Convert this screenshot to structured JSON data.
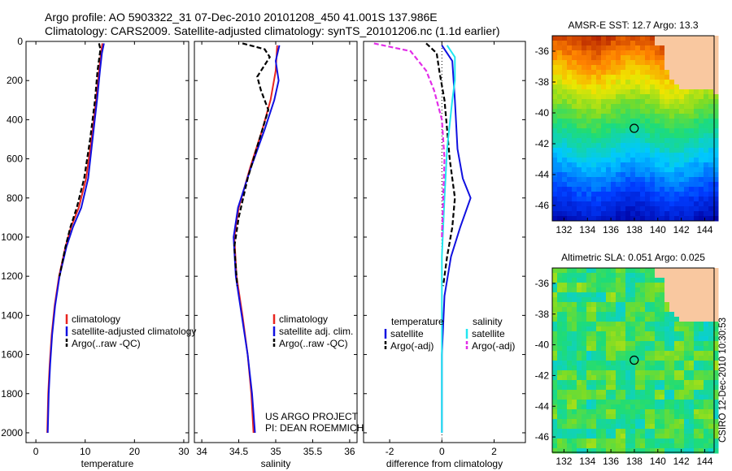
{
  "header": {
    "line1": "Argo profile: AO 5903322_31 07-Dec-2010 20101208_450 41.001S 137.986E",
    "line2": "Climatology: CARS2009. Satellite-adjusted climatology: synTS_20101206.nc (1.1d earlier)"
  },
  "credit": "CSIRO 12-Dec-2010 10:30:53",
  "colors": {
    "climatology": "#e8251f",
    "satellite": "#1010e0",
    "argo": "#000000",
    "salinity_sat": "#22e6f0",
    "salinity_argo": "#e22ee8",
    "land": "#f9c8a0"
  },
  "chart_data": [
    {
      "type": "line",
      "id": "temperature",
      "xlabel": "temperature",
      "ylabel": "",
      "xlim": [
        -2,
        31
      ],
      "ylim": [
        0,
        2050
      ],
      "y_reversed": true,
      "xticks": [
        "0",
        "10",
        "20",
        "30"
      ],
      "yticks": [
        "0",
        "200",
        "400",
        "600",
        "800",
        "1000",
        "1200",
        "1400",
        "1600",
        "1800",
        "2000"
      ],
      "legend": [
        "climatology",
        "satellite-adjusted climatology",
        "Argo(..raw -QC)"
      ],
      "series": [
        {
          "name": "climatology",
          "color": "#e8251f",
          "style": "solid",
          "points": [
            [
              13.5,
              10
            ],
            [
              13.2,
              60
            ],
            [
              12.8,
              150
            ],
            [
              12.2,
              300
            ],
            [
              11.3,
              500
            ],
            [
              10.2,
              700
            ],
            [
              8.7,
              850
            ],
            [
              7.1,
              950
            ],
            [
              6.0,
              1050
            ],
            [
              4.7,
              1200
            ],
            [
              3.8,
              1350
            ],
            [
              3.2,
              1500
            ],
            [
              2.8,
              1650
            ],
            [
              2.5,
              1800
            ],
            [
              2.3,
              2000
            ]
          ]
        },
        {
          "name": "satellite-adjusted climatology",
          "color": "#1010e0",
          "style": "solid",
          "points": [
            [
              13.8,
              10
            ],
            [
              13.4,
              60
            ],
            [
              13.0,
              150
            ],
            [
              12.4,
              300
            ],
            [
              11.5,
              500
            ],
            [
              10.6,
              700
            ],
            [
              9.2,
              850
            ],
            [
              7.5,
              950
            ],
            [
              6.2,
              1050
            ],
            [
              4.8,
              1200
            ],
            [
              3.9,
              1350
            ],
            [
              3.3,
              1500
            ],
            [
              2.9,
              1650
            ],
            [
              2.6,
              1800
            ],
            [
              2.4,
              2000
            ]
          ]
        },
        {
          "name": "Argo(..raw -QC)",
          "color": "#000000",
          "style": "dashed",
          "points": [
            [
              12.8,
              10
            ],
            [
              13.1,
              40
            ],
            [
              12.5,
              150
            ],
            [
              12.0,
              300
            ],
            [
              11.0,
              500
            ],
            [
              9.8,
              700
            ],
            [
              8.3,
              850
            ],
            [
              7.0,
              950
            ],
            [
              6.0,
              1050
            ],
            [
              4.8,
              1200
            ]
          ]
        }
      ]
    },
    {
      "type": "line",
      "id": "salinity",
      "xlabel": "salinity",
      "xlim": [
        33.9,
        36.1
      ],
      "ylim": [
        0,
        2050
      ],
      "y_reversed": true,
      "xticks": [
        "34",
        "34.5",
        "35",
        "35.5",
        "36"
      ],
      "legend": [
        "climatology",
        "satellite adj. clim.",
        "Argo(..raw -QC)"
      ],
      "annotations": [
        "US ARGO PROJECT",
        "PI: DEAN ROEMMICH"
      ],
      "series": [
        {
          "name": "climatology",
          "color": "#e8251f",
          "style": "solid",
          "points": [
            [
              35.02,
              20
            ],
            [
              35.0,
              150
            ],
            [
              34.93,
              300
            ],
            [
              34.82,
              450
            ],
            [
              34.65,
              650
            ],
            [
              34.5,
              850
            ],
            [
              34.44,
              1000
            ],
            [
              34.47,
              1200
            ],
            [
              34.55,
              1400
            ],
            [
              34.62,
              1600
            ],
            [
              34.67,
              1800
            ],
            [
              34.7,
              2000
            ]
          ]
        },
        {
          "name": "satellite adj. clim.",
          "color": "#1010e0",
          "style": "solid",
          "points": [
            [
              35.05,
              20
            ],
            [
              35.0,
              100
            ],
            [
              35.04,
              200
            ],
            [
              34.98,
              300
            ],
            [
              34.85,
              450
            ],
            [
              34.66,
              650
            ],
            [
              34.49,
              850
            ],
            [
              34.43,
              1000
            ],
            [
              34.46,
              1200
            ],
            [
              34.54,
              1400
            ],
            [
              34.62,
              1600
            ],
            [
              34.68,
              1800
            ],
            [
              34.72,
              2000
            ]
          ]
        },
        {
          "name": "Argo(..raw -QC)",
          "color": "#000000",
          "style": "dashed",
          "points": [
            [
              34.55,
              10
            ],
            [
              34.85,
              40
            ],
            [
              34.92,
              80
            ],
            [
              34.75,
              180
            ],
            [
              34.8,
              250
            ],
            [
              34.9,
              350
            ],
            [
              34.78,
              500
            ],
            [
              34.62,
              700
            ],
            [
              34.5,
              900
            ],
            [
              34.44,
              1050
            ],
            [
              34.48,
              1250
            ]
          ]
        }
      ]
    },
    {
      "type": "line",
      "id": "difference",
      "xlabel": "difference from climatology",
      "xlim": [
        -3,
        3.2
      ],
      "ylim": [
        0,
        2050
      ],
      "y_reversed": true,
      "xticks": [
        "-2",
        "0",
        "2"
      ],
      "legend_titles": [
        "temperature",
        "salinity"
      ],
      "legend": [
        "satellite",
        "Argo(-adj)",
        "satellite",
        "Argo(-adj)"
      ],
      "series": [
        {
          "name": "temperature satellite",
          "color": "#1010e0",
          "style": "solid",
          "points": [
            [
              0.0,
              20
            ],
            [
              0.4,
              100
            ],
            [
              0.5,
              300
            ],
            [
              0.6,
              550
            ],
            [
              0.8,
              700
            ],
            [
              1.1,
              800
            ],
            [
              0.7,
              950
            ],
            [
              0.35,
              1100
            ],
            [
              0.1,
              1300
            ],
            [
              0.0,
              1600
            ],
            [
              0.0,
              2000
            ]
          ]
        },
        {
          "name": "temperature Argo(-adj)",
          "color": "#000000",
          "style": "dashed",
          "points": [
            [
              -0.6,
              10
            ],
            [
              -0.2,
              60
            ],
            [
              -0.1,
              150
            ],
            [
              0.1,
              300
            ],
            [
              0.3,
              600
            ],
            [
              0.5,
              800
            ],
            [
              0.4,
              950
            ],
            [
              0.2,
              1100
            ],
            [
              0.05,
              1250
            ]
          ]
        },
        {
          "name": "salinity satellite",
          "color": "#22e6f0",
          "style": "solid",
          "points": [
            [
              0.2,
              20
            ],
            [
              0.5,
              80
            ],
            [
              0.5,
              200
            ],
            [
              0.4,
              300
            ],
            [
              0.2,
              550
            ],
            [
              0.1,
              800
            ],
            [
              0.0,
              1100
            ],
            [
              0.0,
              2000
            ]
          ]
        },
        {
          "name": "salinity Argo(-adj)",
          "color": "#e22ee8",
          "style": "dashed",
          "points": [
            [
              -2.6,
              10
            ],
            [
              -1.2,
              50
            ],
            [
              -0.6,
              150
            ],
            [
              -0.3,
              250
            ],
            [
              0.0,
              400
            ],
            [
              0.1,
              600
            ],
            [
              0.05,
              800
            ],
            [
              0.0,
              1000
            ]
          ]
        }
      ]
    },
    {
      "type": "heatmap",
      "id": "sst_map",
      "title": "AMSR-E SST: 12.7 Argo: 13.3",
      "xlim": [
        131,
        144.8
      ],
      "ylim": [
        -47,
        -35
      ],
      "xticks": [
        "132",
        "134",
        "136",
        "138",
        "140",
        "142",
        "144"
      ],
      "yticks": [
        "-36",
        "-38",
        "-40",
        "-42",
        "-44",
        "-46"
      ],
      "marker": [
        137.986,
        -41.0
      ]
    },
    {
      "type": "heatmap",
      "id": "sla_map",
      "title": "Altimetric SLA: 0.051 Argo: 0.025",
      "xlim": [
        131,
        144.8
      ],
      "ylim": [
        -47,
        -35
      ],
      "xticks": [
        "132",
        "134",
        "136",
        "138",
        "140",
        "142",
        "144"
      ],
      "yticks": [
        "-36",
        "-38",
        "-40",
        "-42",
        "-44",
        "-46"
      ],
      "marker": [
        137.986,
        -41.0
      ]
    }
  ]
}
